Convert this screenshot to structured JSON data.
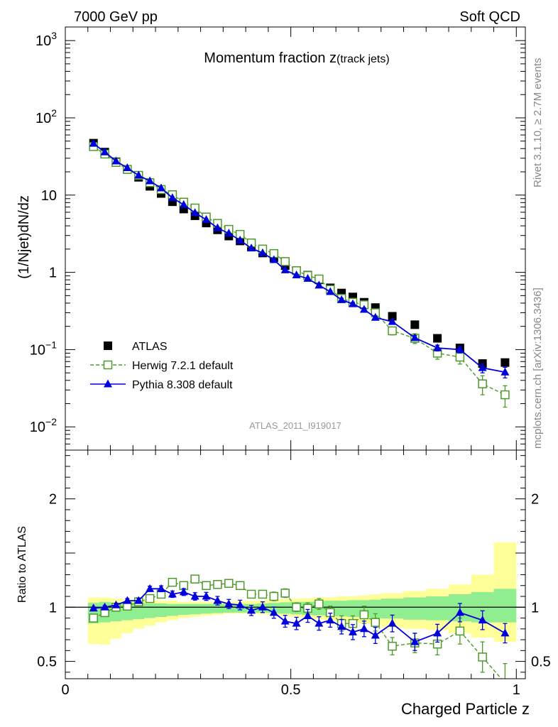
{
  "header": {
    "left": "7000 GeV pp",
    "right": "Soft QCD"
  },
  "side": {
    "rivet": "Rivet 3.1.10, ≥ 2.7M events",
    "mcplots": "mcplots.cern.ch [arXiv:1306.3436]"
  },
  "colors": {
    "atlas": "#000000",
    "herwig": "#4c9a2a",
    "pythia": "#0000dd",
    "band_inner": "#90ee90",
    "band_outer": "#ffff99"
  },
  "chart_data": [
    {
      "type": "scatter",
      "title": "Momentum fraction z",
      "title_sub": "(track jets)",
      "ylabel": "(1/Njet)dN/dz",
      "watermark": "ATLAS_2011_I919017",
      "yscale": "log",
      "ylim": [
        0.005,
        1500
      ],
      "xlim": [
        0,
        1.02
      ],
      "y_ticks": [
        {
          "value": 0.01,
          "base": "10",
          "exp": "−2"
        },
        {
          "value": 0.1,
          "base": "10",
          "exp": "−1"
        },
        {
          "value": 1,
          "base": "1",
          "exp": ""
        },
        {
          "value": 10,
          "base": "10",
          "exp": ""
        },
        {
          "value": 100,
          "base": "10",
          "exp": "2"
        },
        {
          "value": 1000,
          "base": "10",
          "exp": "3"
        }
      ],
      "legend_position": "bottom-left",
      "x": [
        0.0625,
        0.0875,
        0.1125,
        0.1375,
        0.1625,
        0.1875,
        0.2125,
        0.2375,
        0.2625,
        0.2875,
        0.3125,
        0.3375,
        0.3625,
        0.3875,
        0.4125,
        0.4375,
        0.4625,
        0.4875,
        0.5125,
        0.5375,
        0.5625,
        0.5875,
        0.6125,
        0.6375,
        0.6625,
        0.6875,
        0.725,
        0.775,
        0.825,
        0.875,
        0.925,
        0.975
      ],
      "series": [
        {
          "name": "ATLAS",
          "style": "data",
          "values": [
            47,
            36,
            27,
            21.5,
            17,
            13,
            10.5,
            8.2,
            6.6,
            5.4,
            4.35,
            3.55,
            2.95,
            2.55,
            2.15,
            1.78,
            1.55,
            1.22,
            1.05,
            0.92,
            0.8,
            0.63,
            0.54,
            0.48,
            0.41,
            0.35,
            0.27,
            0.21,
            0.14,
            0.105,
            0.066,
            0.068
          ],
          "errors": [
            1,
            0.8,
            0.5,
            0.4,
            0.3,
            0.25,
            0.2,
            0.15,
            0.12,
            0.1,
            0.08,
            0.06,
            0.05,
            0.04,
            0.04,
            0.03,
            0.03,
            0.025,
            0.02,
            0.02,
            0.02,
            0.015,
            0.015,
            0.015,
            0.012,
            0.012,
            0.008,
            0.007,
            0.005,
            0.005,
            0.004,
            0.004
          ]
        },
        {
          "name": "Herwig 7.2.1 default",
          "style": "herwig",
          "values": [
            42.5,
            34,
            26.5,
            21.5,
            18,
            14.5,
            11.8,
            10.1,
            8.1,
            6.8,
            5.2,
            4.3,
            3.6,
            3.1,
            2.4,
            2.0,
            1.75,
            1.38,
            1.05,
            0.91,
            0.82,
            0.6,
            0.46,
            0.41,
            0.38,
            0.3,
            0.175,
            0.14,
            0.09,
            0.08,
            0.036,
            0.026
          ],
          "errors": [
            1.5,
            1.2,
            1,
            0.8,
            0.6,
            0.5,
            0.4,
            0.35,
            0.3,
            0.25,
            0.2,
            0.17,
            0.15,
            0.12,
            0.1,
            0.08,
            0.07,
            0.06,
            0.05,
            0.04,
            0.04,
            0.035,
            0.03,
            0.03,
            0.03,
            0.025,
            0.02,
            0.02,
            0.015,
            0.015,
            0.01,
            0.008
          ]
        },
        {
          "name": "Pythia 8.308 default",
          "style": "pythia",
          "values": [
            46.5,
            36,
            27.5,
            22.5,
            18,
            15.2,
            12.3,
            9.2,
            7.5,
            5.9,
            4.8,
            3.75,
            3.2,
            2.6,
            2.05,
            1.78,
            1.45,
            1.07,
            0.92,
            0.83,
            0.68,
            0.56,
            0.44,
            0.39,
            0.33,
            0.26,
            0.23,
            0.142,
            0.105,
            0.1,
            0.058,
            0.051
          ],
          "errors": [
            0.5,
            0.4,
            0.3,
            0.25,
            0.2,
            0.17,
            0.15,
            0.12,
            0.1,
            0.08,
            0.07,
            0.06,
            0.05,
            0.045,
            0.04,
            0.035,
            0.03,
            0.03,
            0.025,
            0.025,
            0.02,
            0.02,
            0.02,
            0.018,
            0.016,
            0.014,
            0.01,
            0.01,
            0.009,
            0.009,
            0.008,
            0.008
          ]
        }
      ]
    },
    {
      "type": "line",
      "ylabel": "Ratio to ATLAS",
      "xlabel": "Charged Particle z",
      "xlim": [
        0,
        1.02
      ],
      "ylim": [
        0.34,
        2.45
      ],
      "x_ticks": [
        {
          "value": 0,
          "label": "0"
        },
        {
          "value": 0.5,
          "label": "0.5"
        },
        {
          "value": 1,
          "label": "1"
        }
      ],
      "y_ticks": [
        {
          "value": 0.5,
          "label": "0.5"
        },
        {
          "value": 1,
          "label": "1"
        },
        {
          "value": 2,
          "label": "2"
        }
      ],
      "bin_edges": [
        0.05,
        0.075,
        0.1,
        0.125,
        0.15,
        0.175,
        0.2,
        0.225,
        0.25,
        0.275,
        0.3,
        0.325,
        0.35,
        0.375,
        0.4,
        0.425,
        0.45,
        0.475,
        0.5,
        0.525,
        0.55,
        0.575,
        0.6,
        0.625,
        0.65,
        0.675,
        0.7,
        0.75,
        0.8,
        0.85,
        0.9,
        0.95,
        1.0
      ],
      "band_stat": {
        "lo": [
          0.85,
          0.86,
          0.87,
          0.88,
          0.89,
          0.9,
          0.91,
          0.92,
          0.93,
          0.935,
          0.94,
          0.945,
          0.95,
          0.95,
          0.95,
          0.95,
          0.945,
          0.94,
          0.935,
          0.93,
          0.925,
          0.92,
          0.915,
          0.91,
          0.905,
          0.9,
          0.895,
          0.885,
          0.88,
          0.87,
          0.86,
          0.86
        ],
        "hi": [
          1.04,
          1.05,
          1.04,
          1.04,
          1.04,
          1.035,
          1.035,
          1.03,
          1.03,
          1.03,
          1.03,
          1.03,
          1.03,
          1.03,
          1.03,
          1.035,
          1.04,
          1.045,
          1.05,
          1.05,
          1.055,
          1.06,
          1.06,
          1.065,
          1.065,
          1.07,
          1.08,
          1.09,
          1.1,
          1.12,
          1.14,
          1.17
        ]
      },
      "band_total": {
        "lo": [
          0.66,
          0.655,
          0.71,
          0.76,
          0.8,
          0.83,
          0.86,
          0.88,
          0.9,
          0.91,
          0.92,
          0.93,
          0.94,
          0.94,
          0.94,
          0.935,
          0.93,
          0.92,
          0.91,
          0.9,
          0.89,
          0.88,
          0.87,
          0.86,
          0.85,
          0.84,
          0.81,
          0.8,
          0.79,
          0.76,
          0.72,
          0.68
        ],
        "hi": [
          1.09,
          1.09,
          1.08,
          1.07,
          1.07,
          1.065,
          1.06,
          1.06,
          1.05,
          1.05,
          1.05,
          1.05,
          1.05,
          1.055,
          1.06,
          1.065,
          1.07,
          1.075,
          1.08,
          1.085,
          1.09,
          1.09,
          1.1,
          1.1,
          1.11,
          1.12,
          1.13,
          1.15,
          1.17,
          1.21,
          1.3,
          1.6
        ]
      },
      "series": [
        {
          "name": "Herwig 7.2.1 default",
          "style": "herwig",
          "values": [
            0.9,
            0.95,
            1.0,
            1.01,
            1.05,
            1.08,
            1.12,
            1.23,
            1.2,
            1.26,
            1.2,
            1.21,
            1.22,
            1.2,
            1.12,
            1.12,
            1.1,
            1.13,
            1.0,
            0.99,
            1.03,
            0.95,
            0.85,
            0.85,
            0.93,
            0.86,
            0.64,
            0.67,
            0.66,
            0.78,
            0.54,
            0.3
          ],
          "errors": [
            0.02,
            0.02,
            0.02,
            0.02,
            0.02,
            0.02,
            0.02,
            0.03,
            0.03,
            0.03,
            0.03,
            0.03,
            0.03,
            0.03,
            0.03,
            0.03,
            0.04,
            0.04,
            0.04,
            0.05,
            0.05,
            0.06,
            0.07,
            0.07,
            0.08,
            0.08,
            0.08,
            0.09,
            0.1,
            0.12,
            0.14,
            0.18
          ]
        },
        {
          "name": "Pythia 8.308 default",
          "style": "pythia",
          "values": [
            0.99,
            1.0,
            1.02,
            1.06,
            1.06,
            1.17,
            1.17,
            1.12,
            1.14,
            1.1,
            1.1,
            1.06,
            1.03,
            1.02,
            0.97,
            1.0,
            0.95,
            0.87,
            0.85,
            0.92,
            0.85,
            0.88,
            0.82,
            0.77,
            0.8,
            0.74,
            0.85,
            0.68,
            0.76,
            0.95,
            0.88,
            0.76
          ]
        }
      ]
    }
  ]
}
